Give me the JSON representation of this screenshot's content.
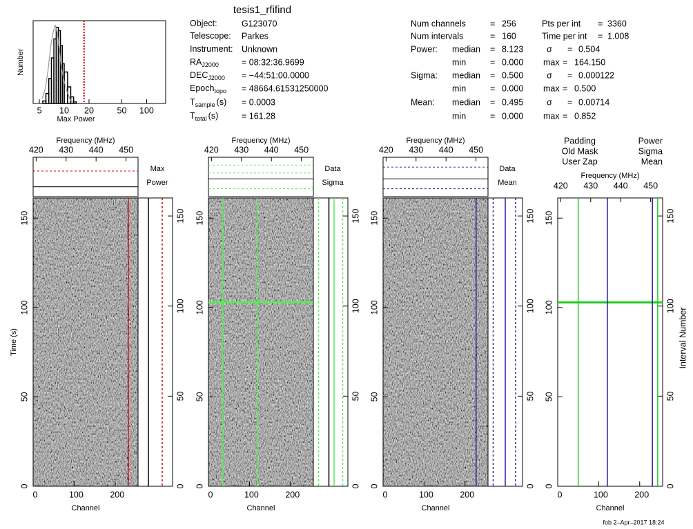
{
  "title": "tesis1_rfifind",
  "info": {
    "left": [
      {
        "label": "Object:",
        "value": "G123070"
      },
      {
        "label": "Telescope:",
        "value": "Parkes"
      },
      {
        "label": "Instrument:",
        "value": "Unknown"
      },
      {
        "label": "RA",
        "sub": "J2000",
        "value": "= 08:32:36.9699"
      },
      {
        "label": "DEC",
        "sub": "J2000",
        "value": "= −44:51:00.0000"
      },
      {
        "label": "Epoch",
        "sub": "topo",
        "value": "= 48664.61531250000"
      },
      {
        "label": "T",
        "sub": "sample",
        "unit": "(s)",
        "value": "= 0.0003"
      },
      {
        "label": "T",
        "sub": "total",
        "unit": "(s)",
        "value": "= 161.28"
      }
    ],
    "right": [
      [
        "Num channels",
        "=",
        "256",
        "Pts per int",
        "=",
        "3360"
      ],
      [
        "Num intervals",
        "=",
        "160",
        "Time per int",
        "=",
        "1.008"
      ],
      [
        "Power:",
        "median",
        "=",
        "8.123",
        "σ",
        "=",
        "0.504"
      ],
      [
        "min",
        "=",
        "0.000",
        "max",
        "=",
        "164.150"
      ],
      [
        "Sigma:",
        "median",
        "=",
        "0.500",
        "σ",
        "=",
        "0.000122"
      ],
      [
        "min",
        "=",
        "0.000",
        "max",
        "=",
        "0.500"
      ],
      [
        "Mean:",
        "median",
        "=",
        "0.495",
        "σ",
        "=",
        "0.00714"
      ],
      [
        "min",
        "=",
        "0.000",
        "max",
        "=",
        "0.852"
      ]
    ]
  },
  "chart_data": [
    {
      "type": "histogram",
      "x_label": "Max Power",
      "y_label": "Number",
      "xscale": "log",
      "xlim": [
        4.2,
        170
      ],
      "xticks": [
        5,
        10,
        20,
        50,
        100
      ],
      "ylim": [
        0,
        100
      ],
      "bins": [
        5.5,
        6,
        6.5,
        7,
        7.5,
        8,
        8.5,
        9,
        9.5,
        10,
        11,
        12,
        13,
        14
      ],
      "counts": [
        3,
        12,
        30,
        55,
        78,
        92,
        88,
        70,
        48,
        38,
        20,
        8,
        2
      ],
      "color": "#000000",
      "fit": [
        6,
        18,
        40,
        68,
        85,
        95,
        84,
        65,
        45,
        28,
        14,
        5,
        1
      ],
      "fit_color": "#999999",
      "threshold": 17.4,
      "threshold_color": "#cc0000"
    },
    {
      "type": "image",
      "x_label": "Channel",
      "xlim": [
        0,
        256
      ],
      "xticks": [
        0,
        100,
        200
      ],
      "top_label": "Frequency (MHz)",
      "top_lim": [
        419,
        454
      ],
      "top_ticks": [
        420,
        430,
        440,
        450
      ],
      "y_label": "Time (s)",
      "ylim": [
        0,
        161.28
      ],
      "yticks": [
        0,
        50,
        100,
        150
      ],
      "y2lim": [
        0,
        160
      ],
      "y2ticks": [
        0,
        50,
        100,
        150
      ],
      "legend": [
        "Max",
        "Power"
      ],
      "color": "#cc0000",
      "masked_channels": [
        232
      ]
    },
    {
      "type": "image",
      "x_label": "Channel",
      "xlim": [
        0,
        256
      ],
      "xticks": [
        0,
        100,
        200
      ],
      "top_label": "Frequency (MHz)",
      "top_lim": [
        419,
        454
      ],
      "top_ticks": [
        420,
        430,
        440,
        450
      ],
      "ylim": [
        0,
        161.28
      ],
      "yticks": [
        0,
        50,
        100,
        150
      ],
      "y2lim": [
        0,
        160
      ],
      "y2ticks": [
        0,
        50,
        100,
        150
      ],
      "legend": [
        "Data",
        "Sigma"
      ],
      "color": "#55ee55",
      "masked_channels": [
        35,
        120
      ],
      "masked_intervals": [
        102
      ]
    },
    {
      "type": "image",
      "x_label": "Channel",
      "xlim": [
        0,
        256
      ],
      "xticks": [
        0,
        100,
        200
      ],
      "top_label": "Frequency (MHz)",
      "top_lim": [
        419,
        454
      ],
      "top_ticks": [
        420,
        430,
        440,
        450
      ],
      "ylim": [
        0,
        161.28
      ],
      "yticks": [
        0,
        50,
        100,
        150
      ],
      "y2lim": [
        0,
        160
      ],
      "y2ticks": [
        0,
        50,
        100,
        150
      ],
      "legend": [
        "Data",
        "Mean"
      ],
      "color": "#2222aa",
      "masked_channels": [
        227
      ]
    },
    {
      "type": "mask",
      "x_label": "Channel",
      "xlim": [
        0,
        256
      ],
      "xticks": [
        0,
        100,
        200
      ],
      "top_label": "Frequency (MHz)",
      "top_lim": [
        419,
        454
      ],
      "top_ticks": [
        420,
        430,
        440,
        450
      ],
      "ylim": [
        0,
        161.28
      ],
      "yticks": [
        0,
        50,
        100,
        150
      ],
      "y2_label": "Interval Number",
      "y2lim": [
        0,
        160
      ],
      "y2ticks": [
        0,
        50,
        100,
        150
      ],
      "series": [
        {
          "name": "Padding",
          "color": "#aaaaaa"
        },
        {
          "name": "Old Mask",
          "color": "#444444"
        },
        {
          "name": "User Zap",
          "color": "#000000"
        },
        {
          "name": "Power",
          "color": "#dd0000"
        },
        {
          "name": "Sigma",
          "color": "#22cc22",
          "channels": [
            50,
            244
          ],
          "intervals": [
            102
          ]
        },
        {
          "name": "Mean",
          "color": "#1a1a9a",
          "channels": [
            121,
            231
          ]
        }
      ]
    }
  ],
  "footer": "fob  2–Apr–2017 18:24"
}
